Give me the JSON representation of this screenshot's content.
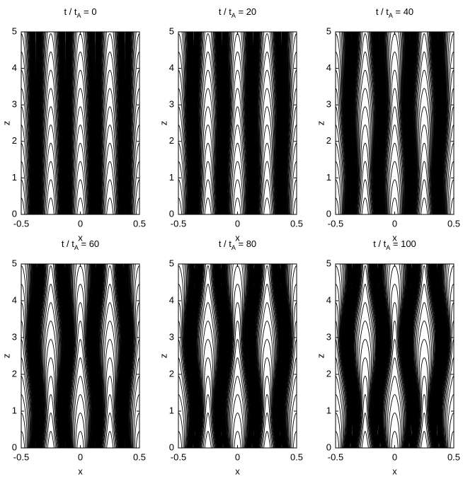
{
  "chart_data": [
    {
      "type": "contour",
      "title_parts": [
        "t / t",
        "A",
        " = 0"
      ],
      "xlabel": "x",
      "ylabel": "z",
      "xlim": [
        -0.5,
        0.5
      ],
      "ylim": [
        0,
        5
      ],
      "xticks": [
        -0.5,
        0,
        0.5
      ],
      "yticks": [
        0,
        1,
        2,
        3,
        4,
        5
      ]
    },
    {
      "type": "contour",
      "title_parts": [
        "t / t",
        "A",
        " = 20"
      ],
      "xlabel": "x",
      "ylabel": "z",
      "xlim": [
        -0.5,
        0.5
      ],
      "ylim": [
        0,
        5
      ],
      "xticks": [
        -0.5,
        0,
        0.5
      ],
      "yticks": [
        0,
        1,
        2,
        3,
        4,
        5
      ]
    },
    {
      "type": "contour",
      "title_parts": [
        "t / t",
        "A",
        " = 40"
      ],
      "xlabel": "x",
      "ylabel": "z",
      "xlim": [
        -0.5,
        0.5
      ],
      "ylim": [
        0,
        5
      ],
      "xticks": [
        -0.5,
        0,
        0.5
      ],
      "yticks": [
        0,
        1,
        2,
        3,
        4,
        5
      ]
    },
    {
      "type": "contour",
      "title_parts": [
        "t / t",
        "A",
        " = 60"
      ],
      "xlabel": "x",
      "ylabel": "z",
      "xlim": [
        -0.5,
        0.5
      ],
      "ylim": [
        0,
        5
      ],
      "xticks": [
        -0.5,
        0,
        0.5
      ],
      "yticks": [
        0,
        1,
        2,
        3,
        4,
        5
      ]
    },
    {
      "type": "contour",
      "title_parts": [
        "t / t",
        "A",
        " = 80"
      ],
      "xlabel": "x",
      "ylabel": "z",
      "xlim": [
        -0.5,
        0.5
      ],
      "ylim": [
        0,
        5
      ],
      "xticks": [
        -0.5,
        0,
        0.5
      ],
      "yticks": [
        0,
        1,
        2,
        3,
        4,
        5
      ]
    },
    {
      "type": "contour",
      "title_parts": [
        "t / t",
        "A",
        " = 100"
      ],
      "xlabel": "x",
      "ylabel": "z",
      "xlim": [
        -0.5,
        0.5
      ],
      "ylim": [
        0,
        5
      ],
      "xticks": [
        -0.5,
        0,
        0.5
      ],
      "yticks": [
        0,
        1,
        2,
        3,
        4,
        5
      ]
    }
  ]
}
